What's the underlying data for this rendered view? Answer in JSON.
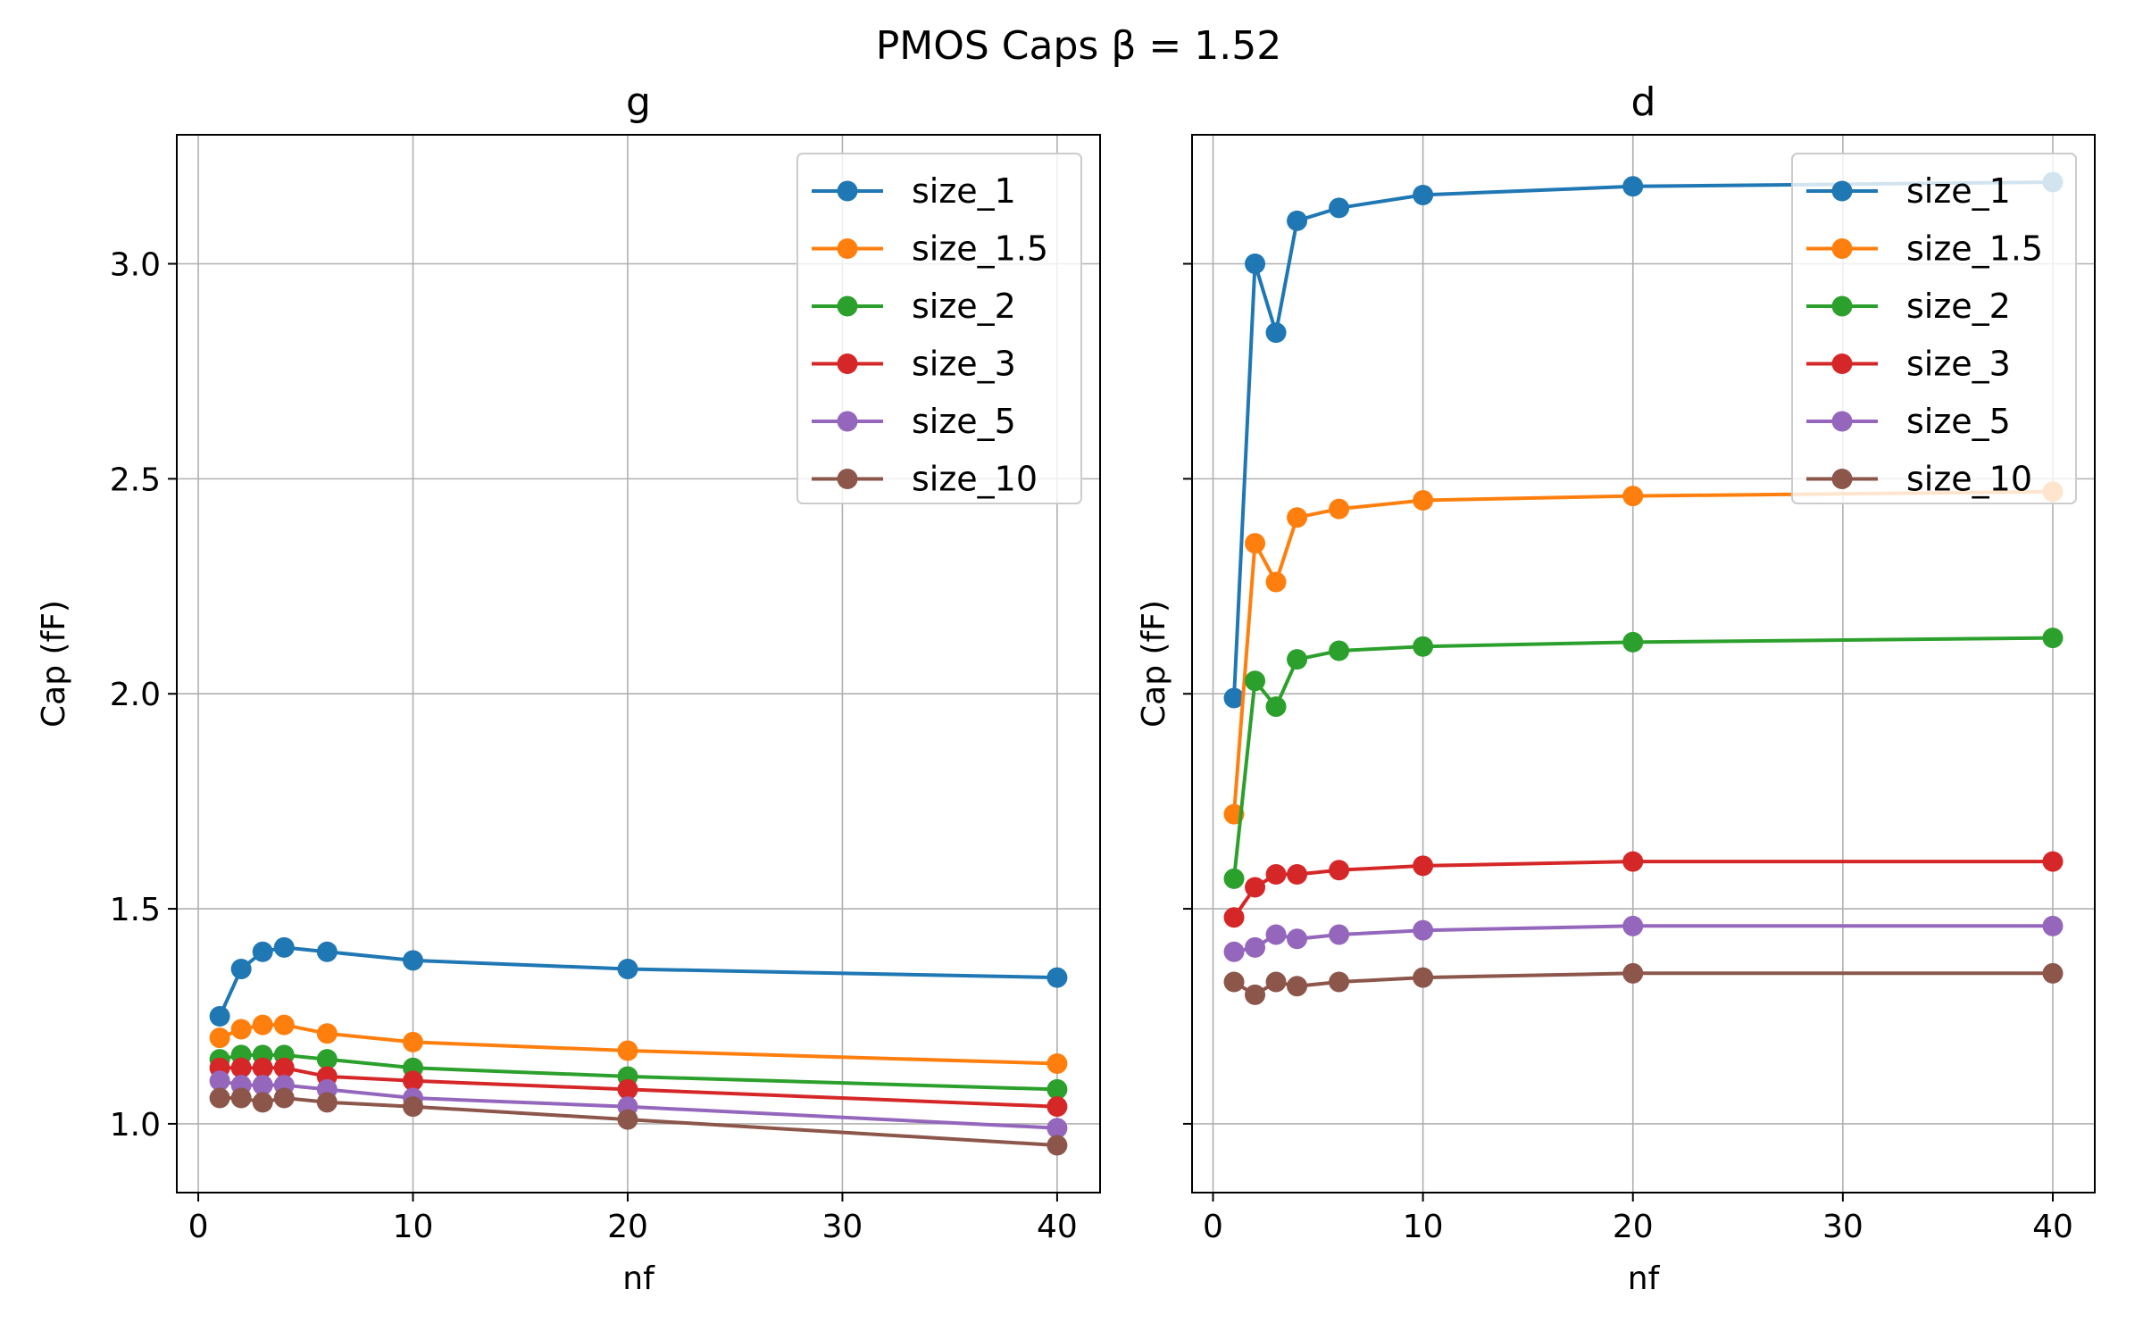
{
  "suptitle": "PMOS Caps β = 1.52",
  "chart_data": [
    {
      "type": "line",
      "title": "g",
      "xlabel": "nf",
      "ylabel": "Cap (fF)",
      "xlim": [
        -1,
        42
      ],
      "ylim": [
        0.84,
        3.3
      ],
      "x_ticks": [
        0,
        10,
        20,
        30,
        40
      ],
      "y_ticks": [
        1.0,
        1.5,
        2.0,
        2.5,
        3.0
      ],
      "x_tick_labels": [
        "0",
        "10",
        "20",
        "30",
        "40"
      ],
      "y_tick_labels": [
        "1.0",
        "1.5",
        "2.0",
        "2.5",
        "3.0"
      ],
      "grid": true,
      "legend_position": "top-right",
      "x": [
        1,
        2,
        3,
        4,
        6,
        10,
        20,
        40
      ],
      "series": [
        {
          "name": "size_1",
          "color": "#1f77b4",
          "values": [
            1.25,
            1.36,
            1.4,
            1.41,
            1.4,
            1.38,
            1.36,
            1.34
          ]
        },
        {
          "name": "size_1.5",
          "color": "#ff7f0e",
          "values": [
            1.2,
            1.22,
            1.23,
            1.23,
            1.21,
            1.19,
            1.17,
            1.14
          ]
        },
        {
          "name": "size_2",
          "color": "#2ca02c",
          "values": [
            1.15,
            1.16,
            1.16,
            1.16,
            1.15,
            1.13,
            1.11,
            1.08
          ]
        },
        {
          "name": "size_3",
          "color": "#d62728",
          "values": [
            1.13,
            1.13,
            1.13,
            1.13,
            1.11,
            1.1,
            1.08,
            1.04
          ]
        },
        {
          "name": "size_5",
          "color": "#9467bd",
          "values": [
            1.1,
            1.09,
            1.09,
            1.09,
            1.08,
            1.06,
            1.04,
            0.99
          ]
        },
        {
          "name": "size_10",
          "color": "#8c564b",
          "values": [
            1.06,
            1.06,
            1.05,
            1.06,
            1.05,
            1.04,
            1.01,
            0.95
          ]
        }
      ]
    },
    {
      "type": "line",
      "title": "d",
      "xlabel": "nf",
      "ylabel": "Cap (fF)",
      "xlim": [
        -1,
        42
      ],
      "ylim": [
        0.84,
        3.3
      ],
      "x_ticks": [
        0,
        10,
        20,
        30,
        40
      ],
      "y_ticks": [
        1.0,
        1.5,
        2.0,
        2.5,
        3.0
      ],
      "x_tick_labels": [
        "0",
        "10",
        "20",
        "30",
        "40"
      ],
      "y_tick_labels": [],
      "grid": true,
      "legend_position": "top-right",
      "x": [
        1,
        2,
        3,
        4,
        6,
        10,
        20,
        40
      ],
      "series": [
        {
          "name": "size_1",
          "color": "#1f77b4",
          "values": [
            1.99,
            3.0,
            2.84,
            3.1,
            3.13,
            3.16,
            3.18,
            3.19
          ]
        },
        {
          "name": "size_1.5",
          "color": "#ff7f0e",
          "values": [
            1.72,
            2.35,
            2.26,
            2.41,
            2.43,
            2.45,
            2.46,
            2.47
          ]
        },
        {
          "name": "size_2",
          "color": "#2ca02c",
          "values": [
            1.57,
            2.03,
            1.97,
            2.08,
            2.1,
            2.11,
            2.12,
            2.13
          ]
        },
        {
          "name": "size_3",
          "color": "#d62728",
          "values": [
            1.48,
            1.55,
            1.58,
            1.58,
            1.59,
            1.6,
            1.61,
            1.61
          ]
        },
        {
          "name": "size_5",
          "color": "#9467bd",
          "values": [
            1.4,
            1.41,
            1.44,
            1.43,
            1.44,
            1.45,
            1.46,
            1.46
          ]
        },
        {
          "name": "size_10",
          "color": "#8c564b",
          "values": [
            1.33,
            1.3,
            1.33,
            1.32,
            1.33,
            1.34,
            1.35,
            1.35
          ]
        }
      ]
    }
  ]
}
